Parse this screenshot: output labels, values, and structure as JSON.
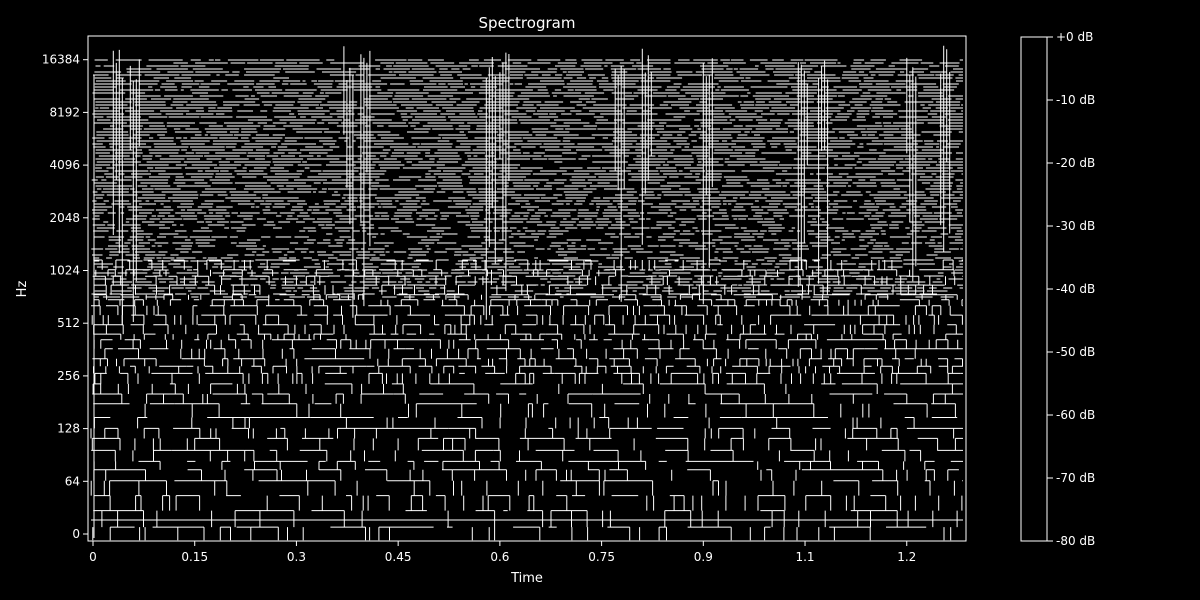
{
  "chart_data": {
    "type": "heatmap",
    "title": "Spectrogram",
    "xlabel": "Time",
    "ylabel": "Hz",
    "xlim": [
      0,
      1.28
    ],
    "x_ticks": [
      {
        "value": 0,
        "label": "0"
      },
      {
        "value": 0.15,
        "label": "0.15"
      },
      {
        "value": 0.3,
        "label": "0.3"
      },
      {
        "value": 0.45,
        "label": "0.45"
      },
      {
        "value": 0.6,
        "label": "0.6"
      },
      {
        "value": 0.75,
        "label": "0.75"
      },
      {
        "value": 0.9,
        "label": "0.9"
      },
      {
        "value": 1.05,
        "label": "1.1"
      },
      {
        "value": 1.2,
        "label": "1.2"
      }
    ],
    "y_ticks": [
      "0",
      "64",
      "128",
      "256",
      "512",
      "1024",
      "2048",
      "4096",
      "8192",
      "16384"
    ],
    "colorbar": {
      "labels": [
        "+0 dB",
        "-10 dB",
        "-20 dB",
        "-30 dB",
        "-40 dB",
        "-50 dB",
        "-60 dB",
        "-70 dB",
        "-80 dB"
      ],
      "range": [
        -80,
        0
      ]
    },
    "colors": {
      "background": "#000000",
      "foreground": "#ffffff"
    }
  }
}
